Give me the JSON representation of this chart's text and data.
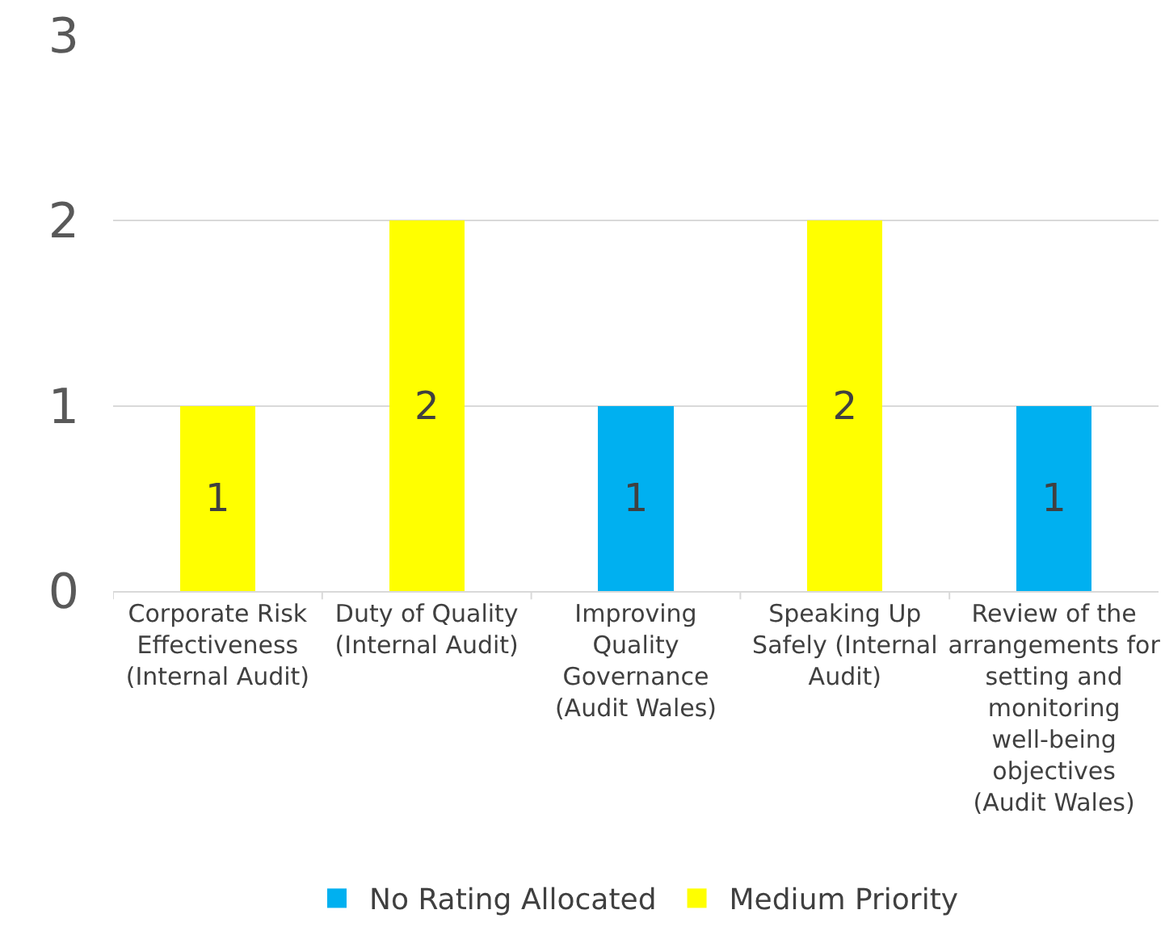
{
  "chart_data": {
    "type": "bar",
    "stacked": true,
    "categories": [
      "Corporate Risk Effectiveness (Internal Audit)",
      "Duty of Quality (Internal Audit)",
      "Improving Quality Governance (Audit Wales)",
      "Speaking Up Safely (Internal Audit)",
      "Review of the arrangements for setting and monitoring well-being objectives (Audit Wales)"
    ],
    "series": [
      {
        "name": "No Rating Allocated",
        "color": "#00b0f0",
        "values": [
          null,
          null,
          1,
          null,
          1
        ]
      },
      {
        "name": "Medium Priority",
        "color": "#ffff00",
        "values": [
          1,
          2,
          null,
          2,
          null
        ]
      }
    ],
    "ylim": [
      0,
      3
    ],
    "yticks": [
      0,
      1,
      2,
      3
    ],
    "grid": "y",
    "legend": "bottom",
    "data_labels": true
  }
}
